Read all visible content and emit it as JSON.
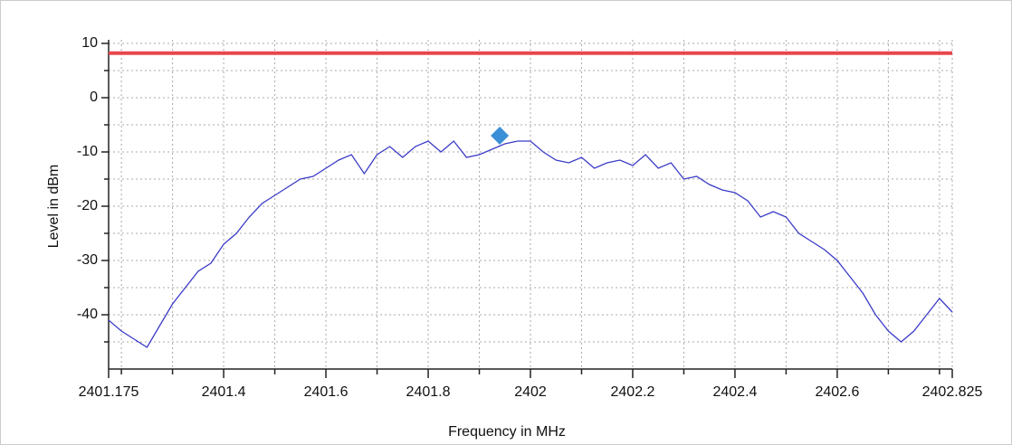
{
  "chart_data": {
    "type": "line",
    "xlabel": "Frequency in MHz",
    "ylabel": "Level in dBm",
    "xlim": [
      2401.175,
      2402.825
    ],
    "ylim": [
      -50,
      10
    ],
    "xticks": [
      2401.175,
      2401.4,
      2401.6,
      2401.8,
      2402,
      2402.2,
      2402.4,
      2402.6,
      2402.825
    ],
    "xminor_ticks": [
      2401.2,
      2401.3,
      2401.5,
      2401.7,
      2401.9,
      2402.1,
      2402.3,
      2402.5,
      2402.7,
      2402.8
    ],
    "yticks": [
      -40,
      -30,
      -20,
      -10,
      0,
      10
    ],
    "yminor_ticks": [
      -45,
      -35,
      -25,
      -15,
      -5,
      5
    ],
    "grid": true,
    "series": [
      {
        "name": "Level",
        "color": "#3b3bc8",
        "x": [
          2401.175,
          2401.2,
          2401.225,
          2401.25,
          2401.275,
          2401.3,
          2401.325,
          2401.35,
          2401.375,
          2401.4,
          2401.425,
          2401.45,
          2401.475,
          2401.5,
          2401.525,
          2401.55,
          2401.575,
          2401.6,
          2401.625,
          2401.65,
          2401.675,
          2401.7,
          2401.725,
          2401.75,
          2401.775,
          2401.8,
          2401.825,
          2401.85,
          2401.875,
          2401.9,
          2401.925,
          2401.95,
          2401.975,
          2402,
          2402.025,
          2402.05,
          2402.075,
          2402.1,
          2402.125,
          2402.15,
          2402.175,
          2402.2,
          2402.225,
          2402.25,
          2402.275,
          2402.3,
          2402.325,
          2402.35,
          2402.375,
          2402.4,
          2402.425,
          2402.45,
          2402.475,
          2402.5,
          2402.525,
          2402.55,
          2402.575,
          2402.6,
          2402.625,
          2402.65,
          2402.675,
          2402.7,
          2402.725,
          2402.75,
          2402.775,
          2402.8,
          2402.825
        ],
        "values": [
          -41,
          -43,
          -44.5,
          -46,
          -42,
          -38,
          -35,
          -32,
          -30.5,
          -27,
          -25,
          -22,
          -19.5,
          -18,
          -16.5,
          -15,
          -14.5,
          -13,
          -11.5,
          -10.5,
          -14,
          -10.5,
          -9,
          -11,
          -9,
          -8,
          -10,
          -8,
          -11,
          -10.5,
          -9.5,
          -8.5,
          -8,
          -8,
          -10,
          -11.5,
          -12,
          -11,
          -13,
          -12,
          -11.5,
          -12.5,
          -10.5,
          -13,
          -12,
          -15,
          -14.5,
          -16,
          -17,
          -17.5,
          -19,
          -22,
          -21,
          -22,
          -25,
          -26.5,
          -28,
          -30,
          -33,
          -36,
          -40,
          -43,
          -45,
          -43,
          -40,
          -37,
          -39.5
        ]
      }
    ],
    "limit_line": {
      "value": 8.2,
      "color": "#e8474c"
    },
    "peak_marker": {
      "x": 2401.94,
      "value": -7,
      "color": "#3a8fd6"
    }
  }
}
